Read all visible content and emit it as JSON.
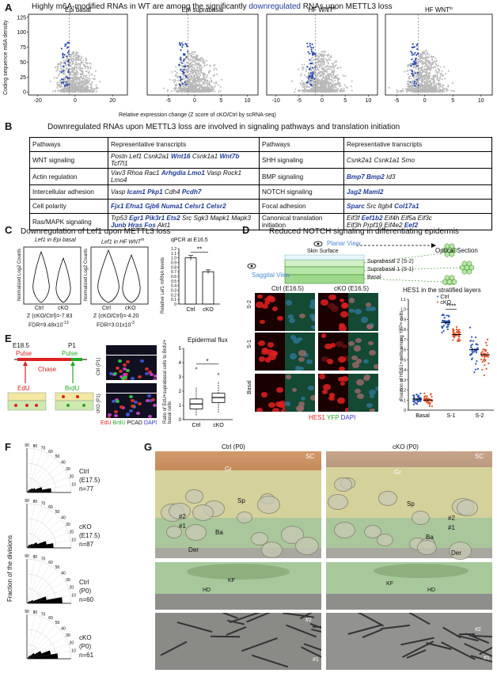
{
  "panel_a": {
    "letter": "A",
    "title_pre": "Highly m6A-modified RNAs in WT are among the significantly ",
    "title_hl": "downregulated",
    "title_post": " RNAs upon METTL3 loss",
    "ylabel": "Coding sequence m6A density",
    "xlabel": "Relative expression change (Z score of cKO/Ctrl by scRNA-seq)",
    "subplots": [
      {
        "title": "Epi basal",
        "title_sup": "",
        "xticks": [
          "-20",
          "0",
          "20"
        ]
      },
      {
        "title": "Epi suprabasal",
        "title_sup": "",
        "xticks": [
          "-5",
          "0",
          "5",
          "10"
        ]
      },
      {
        "title": "HF WNT",
        "title_sup": "hi",
        "xticks": [
          "-10",
          "-5",
          "0",
          "5",
          "10"
        ]
      },
      {
        "title": "HF WNT",
        "title_sup": "lo",
        "xticks": [
          "-5",
          "0",
          "5",
          "10"
        ]
      }
    ],
    "yticks": [
      "0",
      "25",
      "50",
      "75",
      "100",
      "125"
    ]
  },
  "panel_b": {
    "letter": "B",
    "title": "Downregulated RNAs upon METTL3 loss are involved in signaling pathways and translation initiation",
    "headers": [
      "Pathways",
      "Representative transcripts",
      "Pathways",
      "Representative transcripts"
    ],
    "rows": [
      {
        "p1": "WNT signaling",
        "t1": [
          [
            "Postn Lef1 Csnk2a1 ",
            0
          ],
          [
            "Wnt16",
            1
          ],
          [
            " Csnk1a1 ",
            0
          ],
          [
            "Wnt7b",
            1
          ],
          [
            " Tcf7l1",
            0
          ]
        ],
        "p2": "SHH signaling",
        "t2": [
          [
            "Csnk2a1 Csnk1a1 Smo",
            0
          ]
        ]
      },
      {
        "p1": "Actin regulation",
        "t1": [
          [
            "Vav3 Rhoa Rac1 ",
            0
          ],
          [
            "Arhgdia Lmo1",
            1
          ],
          [
            " Vasp Rock1 Lmo4",
            0
          ]
        ],
        "p2": "BMP signaling",
        "t2": [
          [
            "Bmp7 Bmp2",
            1
          ],
          [
            " Id3",
            0
          ]
        ]
      },
      {
        "p1": "Intercellular adhesion",
        "t1": [
          [
            "Vasp ",
            0
          ],
          [
            "Icam1 Pkp1",
            1
          ],
          [
            " Cdh4 ",
            0
          ],
          [
            "Pcdh7",
            1
          ]
        ],
        "p2": "NOTCH signaling",
        "t2": [
          [
            "Jag2 Maml2",
            1
          ]
        ]
      },
      {
        "p1": "Cell polarity",
        "t1": [
          [
            "Fjx1 Efna1 Gjb6 Numa1 Celsr1 Celsr2",
            1
          ]
        ],
        "p2": "Focal adhesion",
        "t2": [
          [
            "Sparc",
            1
          ],
          [
            " Src Itgb4 ",
            0
          ],
          [
            "Col17a1",
            1
          ]
        ]
      },
      {
        "p1": "Ras/MAPK signaling",
        "t1": [
          [
            "Trp53 ",
            0
          ],
          [
            "Egr1 Pik3r1 Ets2",
            1
          ],
          [
            " Src Sgk3 Mapk1 Mapk3",
            0
          ]
        ],
        "t1b": [
          [
            "Junb Hras Fos",
            1
          ],
          [
            " Akt1",
            0
          ]
        ],
        "p2": "Canonical translation initiation",
        "t2": [
          [
            "Eif3f ",
            0
          ],
          [
            "Eef1b2",
            1
          ],
          [
            " Eif4h Eif5a Eif3c",
            0
          ]
        ],
        "t2b": [
          [
            "Eif3h Prpf19 Eif4e2 ",
            0
          ],
          [
            "Eef2",
            1
          ]
        ]
      }
    ]
  },
  "panel_c": {
    "letter": "C",
    "title": "Downregulation of Lef1 upon METTL3 loss",
    "v1_title": "Lef1 in Epi basal",
    "v2_title": "Lef1 in HF WNT",
    "v2_sup": "hi",
    "ylabel": "Normalized Log2 Counts",
    "cats": [
      "Ctrl",
      "cKO"
    ],
    "v1_z": "Z (cKO/Ctrl)=-7.83",
    "v1_fdr": "FDR=9.48x10",
    "v1_fdr_exp": "-13",
    "v2_z": "Z (cKO/Ctrl)=-4.20",
    "v2_fdr": "FDR=3.01x10",
    "v2_fdr_exp": "-3",
    "qpcr_title": "qPCR at E16.5",
    "qpcr_ylabel": "Relative Lef1 mRNA levels",
    "qpcr_sig": "**",
    "qpcr_yticks": [
      "0",
      "0.1",
      "0.2",
      "0.3",
      "0.4",
      "0.5",
      "0.6",
      "0.7",
      "0.8",
      "0.9",
      "1.0",
      "1.1",
      "1.2"
    ]
  },
  "chart_data": [
    {
      "type": "bar",
      "title": "qPCR at E16.5",
      "ylabel": "Relative Lef1 mRNA levels",
      "categories": [
        "Ctrl",
        "cKO"
      ],
      "values": [
        1.0,
        0.7
      ],
      "errors": [
        0.05,
        0.04
      ],
      "ylim": [
        0,
        1.2
      ]
    },
    {
      "type": "scatter",
      "title": "HES1 in the stratified layers",
      "ylabel": "Fraction of HES1+ cells among YFP+ cells",
      "categories": [
        "Basal",
        "S-1",
        "S-2"
      ],
      "series": [
        {
          "name": "Ctrl",
          "color": "#2b55b4",
          "medians": [
            0.11,
            0.87,
            0.6
          ]
        },
        {
          "name": "cKO",
          "color": "#e0532b",
          "medians": [
            0.1,
            0.75,
            0.55
          ]
        }
      ],
      "ylim": [
        0,
        1.1
      ]
    },
    {
      "type": "box",
      "title": "Epidermal flux",
      "ylabel": "Ratio of EdU+ suprabasal cells to BrdU+ basal cells",
      "categories": [
        "Ctrl",
        "cKO"
      ],
      "medians": [
        1.1,
        1.55
      ],
      "ylim": [
        0,
        5
      ]
    }
  ],
  "panel_d": {
    "letter": "D",
    "title": "Reduced NOTCH signaling in differentiating epidermis",
    "planar": "Planar View",
    "optical": "Optical Section",
    "surface": "Skin Surface",
    "saggital": "Saggital View",
    "layer_s2": "Suprabasal 2 (S-2)",
    "layer_s1": "Suprabasal 1 (S-1)",
    "layer_basal": "Basal",
    "ctrl_hdr": "Ctrl (E16.5)",
    "cko_hdr": "cKO (E16.5)",
    "rows": [
      "S-2",
      "S-1",
      "Basal"
    ],
    "stain_hes1": "HES1",
    "stain_yfp": "YFP",
    "stain_dapi": "DAPI",
    "chart_title": "HES1 in the stratified layers",
    "legend_ctrl": "Ctrl",
    "legend_cko": "cKO",
    "sig": "****",
    "ylabel": "Fraction of HES1+ cells among YFP+ cells",
    "yticks": [
      "0",
      "0.1",
      "0.2",
      "0.3",
      "0.4",
      "0.5",
      "0.6",
      "0.7",
      "0.8",
      "0.9",
      "1.0",
      "1.1"
    ],
    "xcats": [
      "Basal",
      "S-1",
      "S-2"
    ]
  },
  "panel_e": {
    "letter": "E",
    "e185": "E18.5",
    "p1": "P1",
    "pulse1": "Pulse",
    "pulse2": "Pulse",
    "chase": "Chase",
    "edu": "EdU",
    "brdu": "BrdU",
    "ctrl_lbl": "Ctrl (P1)",
    "cko_lbl": "cKO (P1)",
    "stains": [
      "EdU",
      "BrdU",
      "PCAD",
      "DAPI"
    ],
    "flux_title": "Epidermal flux",
    "sig": "*",
    "ylabel": "Ratio of EdU+suprabasal cells to BrdU+ basal cells",
    "yticks": [
      "0",
      "1",
      "2",
      "3",
      "4",
      "5"
    ],
    "cats": [
      "Ctrl",
      "cKO"
    ]
  },
  "panel_f": {
    "letter": "F",
    "ylabel": "Fraction of the divisions",
    "angles": [
      "90",
      "80",
      "70",
      "60",
      "50",
      "40",
      "30",
      "20",
      "10"
    ],
    "roses": [
      {
        "lbl": "Ctrl",
        "sub": "(E17.5)",
        "n": "n=77"
      },
      {
        "lbl": "cKO",
        "sub": "(E17.5)",
        "n": "n=87"
      },
      {
        "lbl": "Ctrl",
        "sub": "(P0)",
        "n": "n=60"
      },
      {
        "lbl": "cKO",
        "sub": "(P0)",
        "n": "n=61"
      }
    ]
  },
  "panel_g": {
    "letter": "G",
    "ctrl_hdr": "Ctrl (P0)",
    "cko_hdr": "cKO (P0)",
    "labels_ctrl": [
      "SC",
      "Gr",
      "Sp",
      "#2",
      "#1",
      "Ba",
      "Der"
    ],
    "labels_cko": [
      "SC",
      "Gr",
      "Sp",
      "#2",
      "#1",
      "Ba",
      "Der"
    ],
    "hd": "HD",
    "kf": "KF",
    "n2": "#2",
    "n1": "#1"
  }
}
